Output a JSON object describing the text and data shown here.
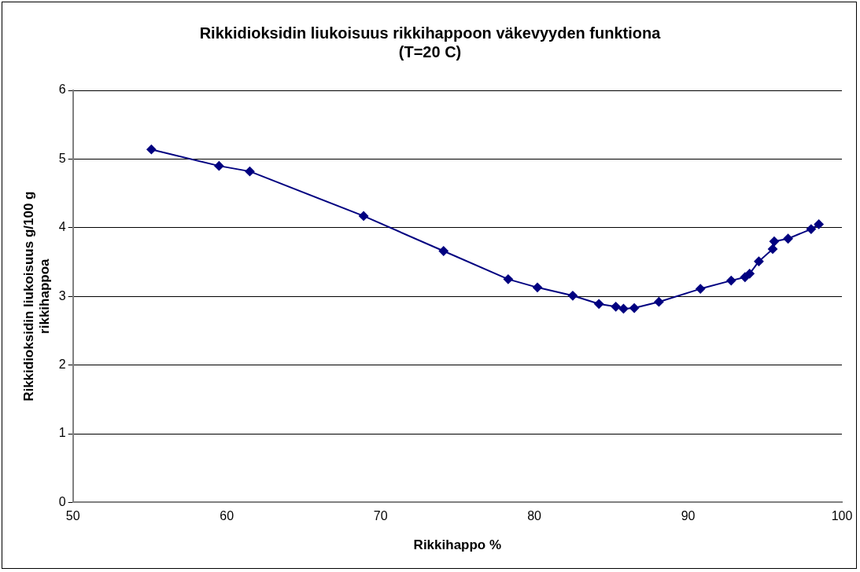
{
  "chart_data": {
    "type": "line",
    "title": [
      "Rikkidioksidin liukoisuus rikkihappoon väkevyyden funktiona",
      "(T=20 C)"
    ],
    "xlabel": "Rikkihappo %",
    "ylabel": "Rikkidioksidin liukoisuus g/100 g rikkihappoa",
    "x": [
      55.1,
      59.5,
      61.5,
      68.9,
      74.1,
      78.3,
      80.2,
      82.5,
      84.2,
      85.3,
      85.8,
      86.5,
      88.1,
      90.8,
      92.8,
      93.7,
      94.0,
      94.6,
      95.5,
      95.6,
      96.5,
      98.0,
      98.5
    ],
    "series": [
      {
        "color": "#000080",
        "values": [
          5.14,
          4.9,
          4.82,
          4.17,
          3.66,
          3.25,
          3.13,
          3.01,
          2.89,
          2.85,
          2.82,
          2.83,
          2.92,
          3.11,
          3.23,
          3.28,
          3.33,
          3.51,
          3.69,
          3.8,
          3.84,
          3.98,
          4.05
        ]
      }
    ],
    "xlim": [
      50,
      100
    ],
    "xticks": [
      50,
      60,
      70,
      80,
      90,
      100
    ],
    "ylim": [
      0,
      6
    ],
    "yticks": [
      0,
      1,
      2,
      3,
      4,
      5,
      6
    ],
    "grid": "y",
    "legend": false,
    "marker": "diamond",
    "line_style": "solid"
  }
}
